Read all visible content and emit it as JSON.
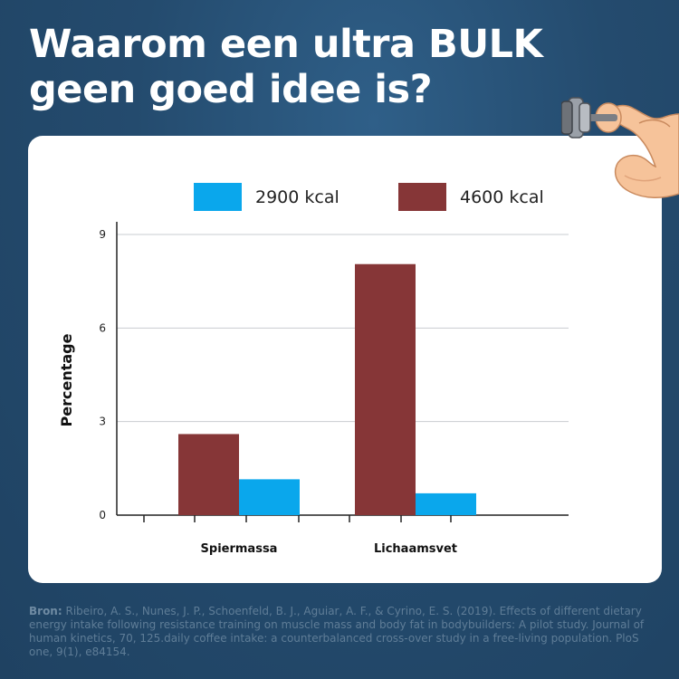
{
  "title": {
    "line1": "Waarom een ultra BULK",
    "line2": "geen goed idee is?"
  },
  "source": {
    "label": "Bron:",
    "text": "Ribeiro, A. S., Nunes, J. P., Schoenfeld, B. J., Aguiar, A. F., & Cyrino, E. S. (2019). Effects of different dietary energy intake following resistance training on muscle mass and body fat in bodybuilders: A pilot study. Journal of human kinetics, 70, 125.daily coffee intake: a counterbalanced cross-over study in a free-living population. PloS one, 9(1), e84154."
  },
  "illustration": {
    "icon": "flexed-arm-dumbbell-icon"
  },
  "chart_data": {
    "type": "bar",
    "categories": [
      "Spiermassa",
      "Lichaamsvet"
    ],
    "series": [
      {
        "name": "4600 kcal",
        "values": [
          2.6,
          8.05
        ],
        "color": "#863637"
      },
      {
        "name": "2900 kcal",
        "values": [
          1.15,
          0.7
        ],
        "color": "#0aa7ec"
      }
    ],
    "legend_order": [
      "2900 kcal",
      "4600 kcal"
    ],
    "ylabel": "Percentage",
    "xlabel": "",
    "ylim": [
      0,
      9
    ],
    "yticks": [
      0,
      3,
      6,
      9
    ],
    "grid": true,
    "legend_position": "top"
  }
}
